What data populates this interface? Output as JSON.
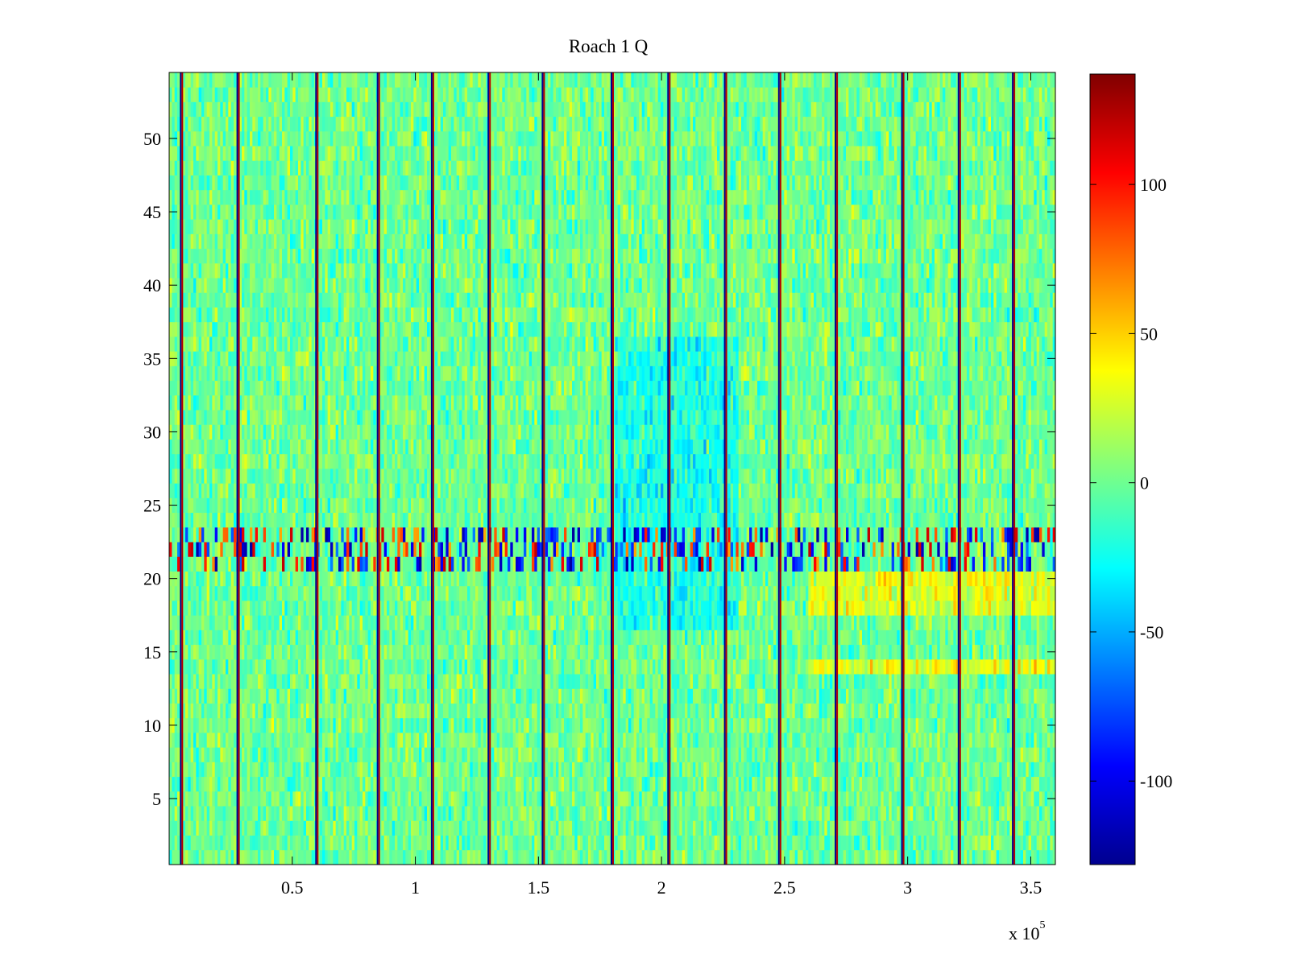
{
  "chart_data": {
    "type": "heatmap",
    "title": "Roach 1 Q",
    "xlabel": "",
    "ylabel": "",
    "x_range": [
      0,
      360000
    ],
    "y_range": [
      0.5,
      54.5
    ],
    "rows": 54,
    "x_ticks": [
      {
        "value": 50000,
        "label": "0.5"
      },
      {
        "value": 100000,
        "label": "1"
      },
      {
        "value": 150000,
        "label": "1.5"
      },
      {
        "value": 200000,
        "label": "2"
      },
      {
        "value": 250000,
        "label": "2.5"
      },
      {
        "value": 300000,
        "label": "3"
      },
      {
        "value": 350000,
        "label": "3.5"
      }
    ],
    "x_exponent": {
      "base": "x 10",
      "power": "5"
    },
    "y_ticks": [
      {
        "value": 5,
        "label": "5"
      },
      {
        "value": 10,
        "label": "10"
      },
      {
        "value": 15,
        "label": "15"
      },
      {
        "value": 20,
        "label": "20"
      },
      {
        "value": 25,
        "label": "25"
      },
      {
        "value": 30,
        "label": "30"
      },
      {
        "value": 35,
        "label": "35"
      },
      {
        "value": 40,
        "label": "40"
      },
      {
        "value": 45,
        "label": "45"
      },
      {
        "value": 50,
        "label": "50"
      }
    ],
    "colorbar": {
      "colormap": "jet",
      "range": [
        -128,
        137
      ],
      "ticks": [
        {
          "value": 100,
          "label": "100"
        },
        {
          "value": 50,
          "label": "50"
        },
        {
          "value": 0,
          "label": "0"
        },
        {
          "value": -50,
          "label": "-50"
        },
        {
          "value": -100,
          "label": "-100"
        }
      ]
    },
    "vertical_stripes_x": [
      5000,
      28000,
      60000,
      85000,
      107000,
      130000,
      152000,
      180000,
      203000,
      226000,
      248000,
      271000,
      298000,
      321000,
      343000
    ],
    "noisy_rows": [
      21,
      22,
      23
    ],
    "grid": false,
    "legend": "none"
  }
}
